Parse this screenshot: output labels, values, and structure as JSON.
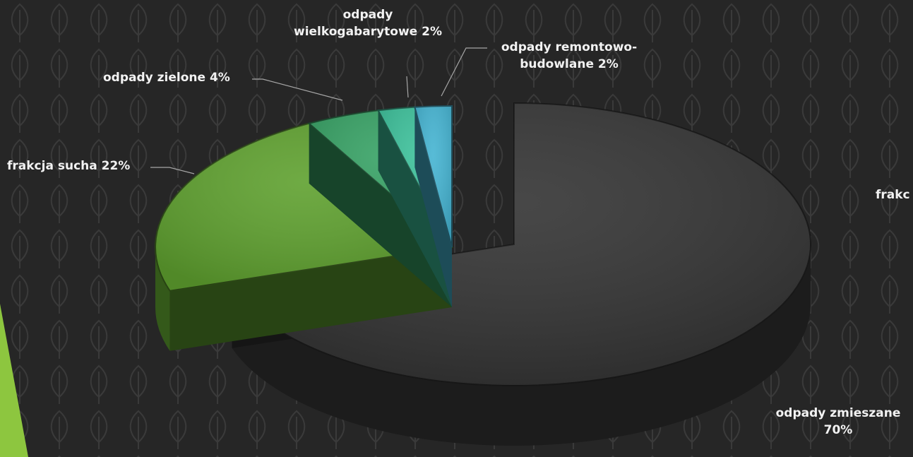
{
  "chart_data": {
    "type": "pie",
    "variant": "3d-exploded",
    "title": "",
    "legend": "none",
    "slices": [
      {
        "name": "odpady zmieszane",
        "value": 70,
        "color": "#333333",
        "label_lines": [
          "odpady zmieszane",
          "70%"
        ]
      },
      {
        "name": "frakcja sucha",
        "value": 22,
        "color": "#5fa12f",
        "label_lines": [
          "frakcja sucha 22%"
        ]
      },
      {
        "name": "odpady zielone",
        "value": 4,
        "color": "#37a265",
        "label_lines": [
          "odpady zielone 4%"
        ]
      },
      {
        "name": "odpady wielkogabarytowe",
        "value": 2,
        "color": "#3cc09a",
        "label_lines": [
          "odpady",
          "wielkogabarytowe 2%"
        ]
      },
      {
        "name": "odpady remontowo-budowlane",
        "value": 2,
        "color": "#45b4d2",
        "label_lines": [
          "odpady remontowo-",
          "budowlane 2%"
        ]
      }
    ],
    "cut_off_label": "frakc"
  },
  "background": {
    "color": "#262626",
    "pattern": "leaf-outline",
    "pattern_color": "#3a3a3a",
    "accent_color": "#8dc63f"
  }
}
